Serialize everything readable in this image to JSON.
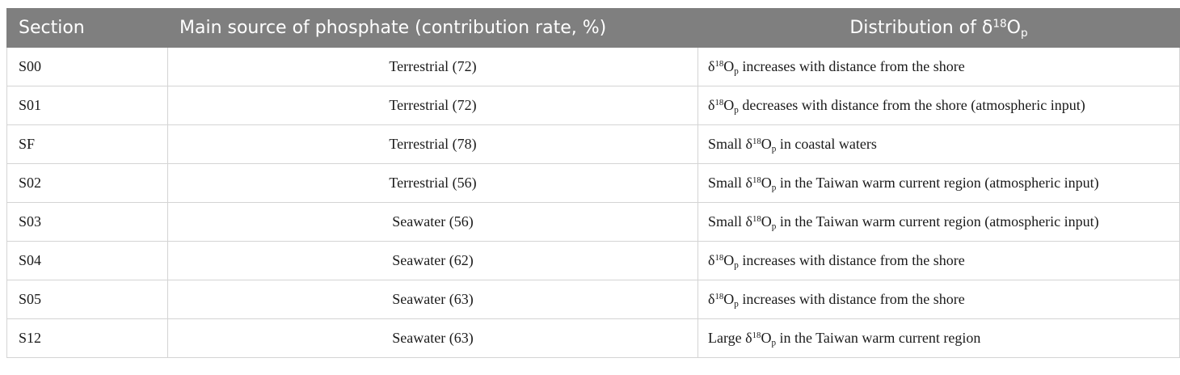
{
  "headers": {
    "section": "Section",
    "source": "Main source of phosphate (contribution rate, %)",
    "dist_prefix": "Distribution of δ",
    "dist_sup": "18",
    "dist_o": "O",
    "dist_sub": "p"
  },
  "rows": [
    {
      "section": "S00",
      "source": "Terrestrial (72)",
      "pre": "",
      "post": " increases with distance from the shore"
    },
    {
      "section": "S01",
      "source": "Terrestrial (72)",
      "pre": "",
      "post": " decreases with distance from the shore (atmospheric input)"
    },
    {
      "section": "SF",
      "source": "Terrestrial (78)",
      "pre": "Small ",
      "post": " in coastal waters"
    },
    {
      "section": "S02",
      "source": "Terrestrial (56)",
      "pre": "Small ",
      "post": " in the Taiwan warm current region (atmospheric input)"
    },
    {
      "section": "S03",
      "source": "Seawater (56)",
      "pre": "Small ",
      "post": " in the Taiwan warm current region (atmospheric input)"
    },
    {
      "section": "S04",
      "source": "Seawater (62)",
      "pre": "",
      "post": " increases with distance from the shore"
    },
    {
      "section": "S05",
      "source": "Seawater (63)",
      "pre": "",
      "post": " increases with distance from the shore"
    },
    {
      "section": "S12",
      "source": "Seawater (63)",
      "pre": "Large ",
      "post": " in the Taiwan warm current region"
    }
  ],
  "symbol": {
    "delta": "δ",
    "sup": "18",
    "o": "O",
    "sub": "p"
  }
}
